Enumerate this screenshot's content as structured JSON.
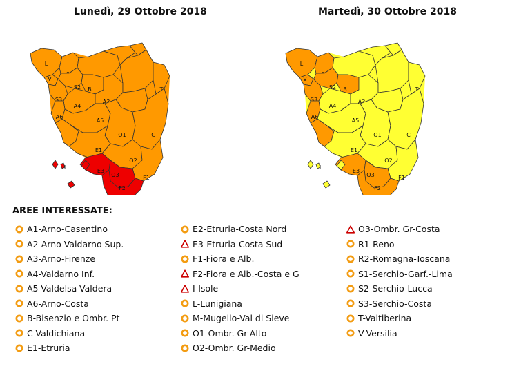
{
  "maps": [
    {
      "title": "Lunedì, 29 Ottobre 2018",
      "zones": {
        "L": "orange",
        "V": "orange",
        "S1": "orange",
        "S2": "orange",
        "S3": "orange",
        "M": "orange",
        "R2": "orange",
        "R1": "orange",
        "B": "orange",
        "A4": "orange",
        "A3": "orange",
        "A1": "orange",
        "A2": "orange",
        "T": "orange",
        "A6": "orange",
        "A5": "orange",
        "O1": "orange",
        "C": "orange",
        "E2": "orange",
        "E1": "orange",
        "O2": "orange",
        "F1": "orange",
        "E3": "red",
        "O3": "red",
        "F2": "red",
        "I": "red"
      }
    },
    {
      "title": "Martedì, 30 Ottobre 2018",
      "zones": {
        "L": "orange",
        "V": "orange",
        "S1": "orange",
        "S2": "orange",
        "S3": "orange",
        "M": "yellow",
        "R2": "yellow",
        "R1": "yellow",
        "B": "orange",
        "A4": "yellow",
        "A3": "yellow",
        "A1": "yellow",
        "A2": "yellow",
        "T": "yellow",
        "A6": "orange",
        "A5": "yellow",
        "O1": "yellow",
        "C": "yellow",
        "E2": "orange",
        "E1": "yellow",
        "O2": "yellow",
        "F1": "yellow",
        "E3": "orange",
        "O3": "orange",
        "F2": "orange",
        "I": "yellow"
      }
    }
  ],
  "colors": {
    "yellow": "#ffff33",
    "orange": "#ff9900",
    "red": "#ee0000",
    "border": "#333333"
  },
  "legend_heading": "AREE INTERESSATE:",
  "legend": [
    [
      {
        "label": "A1-Arno-Casentino",
        "icon": "circle-icon"
      },
      {
        "label": "A2-Arno-Valdarno Sup.",
        "icon": "circle-icon"
      },
      {
        "label": "A3-Arno-Firenze",
        "icon": "circle-icon"
      },
      {
        "label": "A4-Valdarno Inf.",
        "icon": "circle-icon"
      },
      {
        "label": "A5-Valdelsa-Valdera",
        "icon": "circle-icon"
      },
      {
        "label": "A6-Arno-Costa",
        "icon": "circle-icon"
      },
      {
        "label": "B-Bisenzio e Ombr. Pt",
        "icon": "circle-icon"
      },
      {
        "label": "C-Valdichiana",
        "icon": "circle-icon"
      },
      {
        "label": "E1-Etruria",
        "icon": "circle-icon"
      }
    ],
    [
      {
        "label": "E2-Etruria-Costa Nord",
        "icon": "circle-icon"
      },
      {
        "label": "E3-Etruria-Costa Sud",
        "icon": "triangle-icon"
      },
      {
        "label": "F1-Fiora e Alb.",
        "icon": "circle-icon"
      },
      {
        "label": "F2-Fiora e Alb.-Costa e G",
        "icon": "triangle-icon"
      },
      {
        "label": "I-Isole",
        "icon": "triangle-icon"
      },
      {
        "label": "L-Lunigiana",
        "icon": "circle-icon"
      },
      {
        "label": "M-Mugello-Val di Sieve",
        "icon": "circle-icon"
      },
      {
        "label": "O1-Ombr. Gr-Alto",
        "icon": "circle-icon"
      },
      {
        "label": "O2-Ombr. Gr-Medio",
        "icon": "circle-icon"
      }
    ],
    [
      {
        "label": "O3-Ombr. Gr-Costa",
        "icon": "triangle-icon"
      },
      {
        "label": "R1-Reno",
        "icon": "circle-icon"
      },
      {
        "label": "R2-Romagna-Toscana",
        "icon": "circle-icon"
      },
      {
        "label": "S1-Serchio-Garf.-Lima",
        "icon": "circle-icon"
      },
      {
        "label": "S2-Serchio-Lucca",
        "icon": "circle-icon"
      },
      {
        "label": "S3-Serchio-Costa",
        "icon": "circle-icon"
      },
      {
        "label": "T-Valtiberina",
        "icon": "circle-icon"
      },
      {
        "label": "V-Versilia",
        "icon": "circle-icon"
      }
    ]
  ]
}
